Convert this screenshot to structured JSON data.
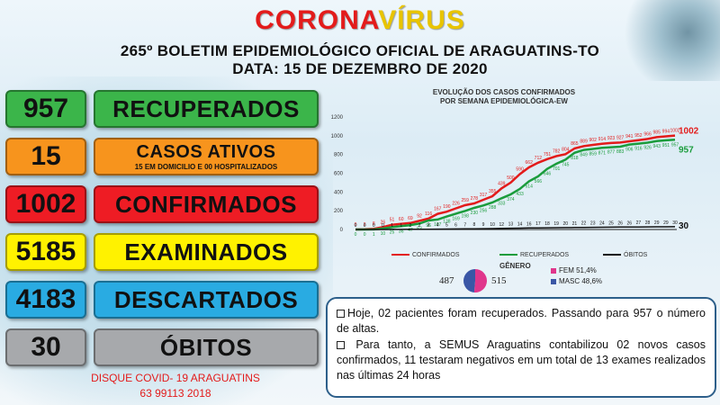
{
  "header": {
    "title_part1": "CORONA",
    "title_part2": "VÍRUS",
    "line1": "265º BOLETIM EPIDEMIOLÓGICO OFICIAL DE ARAGUATINS-TO",
    "line2": "DATA: 15  DE DEZEMBRO DE 2020"
  },
  "stats": [
    {
      "value": "957",
      "label": "RECUPERADOS",
      "color": "#3bb54a"
    },
    {
      "value": "15",
      "label": "CASOS ATIVOS",
      "sub": "15 EM DOMICILIO E 00 HOSPITALIZADOS",
      "color": "#f7941d"
    },
    {
      "value": "1002",
      "label": "CONFIRMADOS",
      "color": "#ee1c24"
    },
    {
      "value": "5185",
      "label": "EXAMINADOS",
      "color": "#fff200"
    },
    {
      "value": "4183",
      "label": "DESCARTADOS",
      "color": "#29abe2"
    },
    {
      "value": "30",
      "label": "ÓBITOS",
      "color": "#a7a9ac"
    }
  ],
  "hotline": {
    "line1": "DISQUE COVID- 19 ARAGUATINS",
    "line2": "63 99113 2018"
  },
  "chart_data": {
    "type": "line",
    "title": "EVOLUÇÃO DOS CASOS CONFIRMADOS",
    "subtitle": "POR SEMANA EPIDEMIOLÓGICA-EW",
    "ylim": [
      0,
      1200
    ],
    "yticks": [
      0,
      200,
      400,
      600,
      800,
      1000,
      1200
    ],
    "grid": false,
    "legend": "bottom",
    "series": [
      {
        "name": "CONFIRMADOS",
        "color": "#e31b1b",
        "values": [
          0,
          2,
          8,
          26,
          51,
          60,
          69,
          92,
          116,
          167,
          190,
          226,
          259,
          278,
          317,
          355,
          439,
          500,
          590,
          662,
          712,
          751,
          782,
          804,
          865,
          889,
          902,
          914,
          923,
          927,
          941,
          952,
          966,
          985,
          994,
          1002
        ],
        "end_label": "1002"
      },
      {
        "name": "RECUPERADOS",
        "color": "#1a9c3c",
        "values": [
          0,
          0,
          1,
          10,
          25,
          36,
          47,
          63,
          96,
          107,
          138,
          169,
          198,
          230,
          256,
          288,
          333,
          374,
          433,
          514,
          566,
          646,
          701,
          745,
          818,
          849,
          859,
          871,
          877,
          883,
          906,
          916,
          926,
          943,
          951,
          957
        ],
        "end_label": "957"
      },
      {
        "name": "ÓBITOS",
        "color": "#111111",
        "values": [
          0,
          0,
          0,
          0,
          1,
          1,
          2,
          2,
          3,
          4,
          5,
          6,
          7,
          8,
          9,
          10,
          12,
          13,
          14,
          16,
          17,
          18,
          19,
          20,
          21,
          22,
          23,
          24,
          25,
          26,
          26,
          27,
          28,
          29,
          29,
          30
        ],
        "end_label": "30"
      }
    ]
  },
  "gender": {
    "title": "GÊNERO",
    "masc_count": "487",
    "fem_count": "515",
    "fem_label": "FEM 51,4%",
    "masc_label": "MASC 48,6%",
    "fem_pct": 51.4,
    "masc_pct": 48.6,
    "fem_color": "#e0368c",
    "masc_color": "#3a57a6"
  },
  "info": {
    "p1": "Hoje, 02 pacientes foram recuperados. Passando para 957 o número de altas.",
    "p2": " Para tanto, a SEMUS Araguatins contabilizou 02 novos casos confirmados, 11 testaram negativos em um total de 13 exames realizados nas últimas 24 horas"
  }
}
